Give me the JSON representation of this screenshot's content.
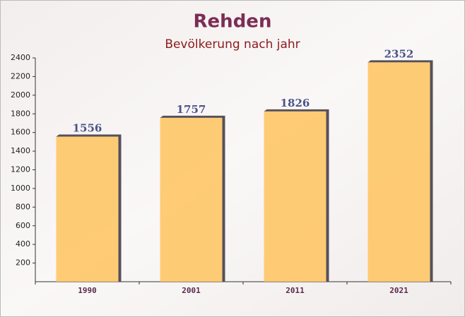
{
  "chart_data": {
    "type": "bar",
    "title": "Rehden",
    "subtitle": "Bevölkerung nach jahr",
    "categories": [
      "1990",
      "2001",
      "2011",
      "2021"
    ],
    "values": [
      1556,
      1757,
      1826,
      2352
    ],
    "color": "#ffc35e",
    "ylim": [
      0,
      2400
    ],
    "yticks": [
      200,
      400,
      600,
      800,
      1000,
      1200,
      1400,
      1600,
      1800,
      2000,
      2200,
      2400
    ]
  }
}
